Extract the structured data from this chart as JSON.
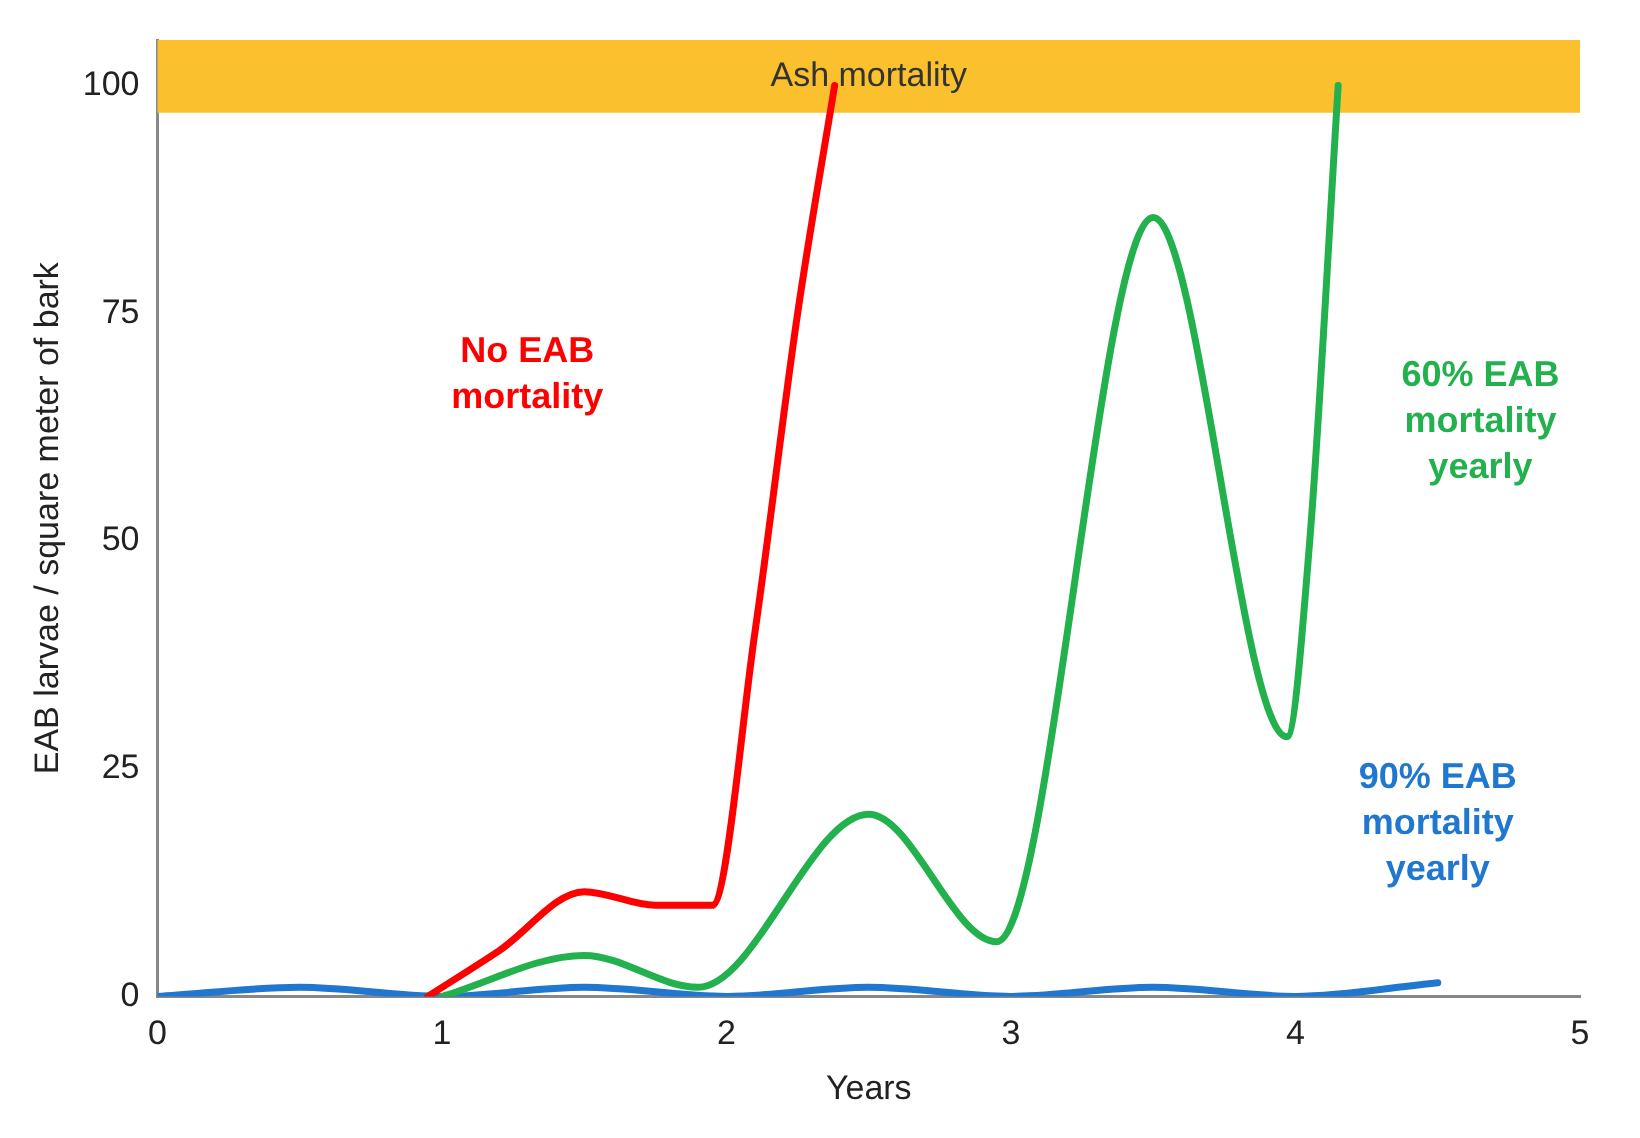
{
  "chart_data": {
    "type": "line",
    "xlabel": "Years",
    "ylabel": "EAB larvae / square meter of bark",
    "xlim": [
      0,
      5
    ],
    "xticks": [
      0,
      1,
      2,
      3,
      4,
      5
    ],
    "ylim": [
      0,
      105
    ],
    "yticks": [
      0,
      25,
      50,
      75,
      100
    ],
    "grid": false,
    "legend": false,
    "marker": "none",
    "line_style": "solid",
    "series": [
      {
        "name": "No EAB mortality",
        "color": "#ff0000",
        "x": [
          0.95,
          1.2,
          1.5,
          1.75,
          1.95,
          2.1,
          2.25,
          2.38
        ],
        "values": [
          0,
          5,
          11.5,
          10,
          10,
          40,
          75,
          100
        ]
      },
      {
        "name": "60% EAB mortality yearly",
        "color": "#22b14c",
        "x": [
          1,
          1.5,
          1.9,
          2.5,
          2.95,
          3.5,
          3.97,
          4.05,
          4.15
        ],
        "values": [
          0,
          4.5,
          1,
          20,
          6,
          85.5,
          28.5,
          50,
          100
        ]
      },
      {
        "name": "90% EAB mortality yearly",
        "color": "#1f77d0",
        "x": [
          0,
          0.5,
          1,
          1.5,
          2,
          2.5,
          3,
          3.5,
          4,
          4.5
        ],
        "values": [
          0,
          1,
          0,
          1,
          0,
          1,
          0,
          1,
          0,
          1.5
        ]
      }
    ],
    "bands": [
      {
        "axis": "y",
        "from": 97,
        "to": 105,
        "label": "Ash mortality",
        "color": "#fbc02d"
      }
    ]
  }
}
